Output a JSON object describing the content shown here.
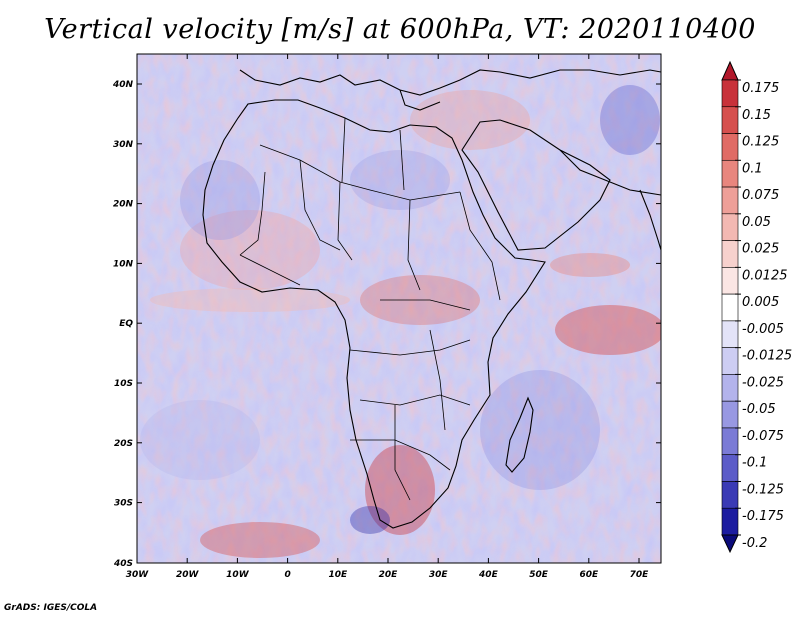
{
  "title": "Vertical velocity [m/s] at 600hPa, VT: 2020110400",
  "credit": "GrADS: IGES/COLA",
  "latitude_labels": [
    "40N",
    "30N",
    "20N",
    "10N",
    "EQ",
    "10S",
    "20S",
    "30S",
    "40S"
  ],
  "longitude_labels": [
    "30W",
    "20W",
    "10W",
    "0",
    "10E",
    "20E",
    "30E",
    "40E",
    "50E",
    "60E",
    "70E"
  ],
  "colorbar": {
    "levels": [
      "0.175",
      "0.15",
      "0.125",
      "0.1",
      "0.075",
      "0.05",
      "0.025",
      "0.0125",
      "0.005",
      "-0.005",
      "-0.0125",
      "-0.025",
      "-0.05",
      "-0.075",
      "-0.1",
      "-0.125",
      "-0.175",
      "-0.2"
    ],
    "colors": [
      "#b2182b",
      "#c8323a",
      "#d6504e",
      "#e06b65",
      "#e8867e",
      "#ee9f98",
      "#f3b8b2",
      "#f7d1cd",
      "#fbe6e4",
      "#ffffff",
      "#e3e3f8",
      "#cdcdf3",
      "#b3b3ec",
      "#9898e2",
      "#7b7bd6",
      "#5c5cc8",
      "#3a3ab5",
      "#1c1ca0",
      "#0a0a7a"
    ]
  }
}
